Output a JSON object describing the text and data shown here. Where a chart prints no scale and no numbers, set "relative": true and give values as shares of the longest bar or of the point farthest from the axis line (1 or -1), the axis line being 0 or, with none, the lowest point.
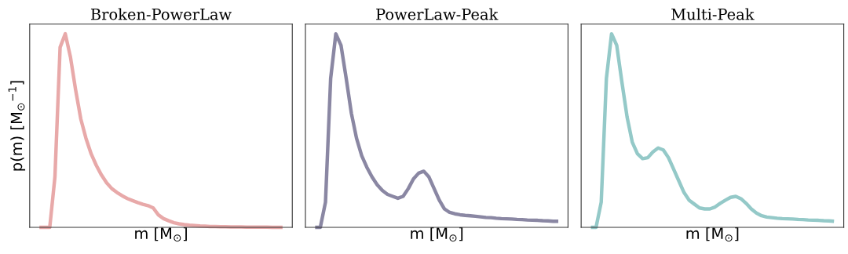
{
  "chart_data": [
    {
      "type": "line",
      "title": "Broken-PowerLaw",
      "xlabel": "m [M$_{⊙}$]",
      "ylabel": "p(m) [M$_{⊙}$$^{−1}$]",
      "relative": true,
      "categories": [
        null,
        null,
        null,
        null,
        null,
        null,
        null,
        null,
        null,
        null,
        null,
        null,
        null,
        null,
        null,
        null,
        null,
        null,
        null,
        null,
        null,
        null,
        null,
        null,
        null,
        null,
        null,
        null,
        null,
        null,
        null,
        null,
        null,
        null,
        null,
        null,
        null,
        null,
        null,
        null,
        null,
        null,
        null,
        null,
        null,
        null,
        null,
        null
      ],
      "series": [
        {
          "color": "#e8a9a9",
          "values": [
            0,
            0,
            0,
            0.26,
            0.93,
            1.0,
            0.88,
            0.71,
            0.56,
            0.46,
            0.38,
            0.32,
            0.27,
            0.23,
            0.2,
            0.18,
            0.163,
            0.149,
            0.138,
            0.128,
            0.119,
            0.112,
            0.1,
            0.064,
            0.045,
            0.034,
            0.024,
            0.018,
            0.014,
            0.011,
            0.009,
            0.007,
            0.006,
            0.004,
            0.004,
            0.003,
            0.003,
            0.002,
            0.002,
            0.002,
            0.001,
            0.001,
            0.001,
            0.001,
            0.001,
            0,
            0,
            0
          ]
        }
      ]
    },
    {
      "type": "line",
      "title": "PowerLaw-Peak",
      "xlabel": "m [M$_{⊙}$]",
      "relative": true,
      "categories": [
        null,
        null,
        null,
        null,
        null,
        null,
        null,
        null,
        null,
        null,
        null,
        null,
        null,
        null,
        null,
        null,
        null,
        null,
        null,
        null,
        null,
        null,
        null,
        null,
        null,
        null,
        null,
        null,
        null,
        null,
        null,
        null,
        null,
        null,
        null,
        null,
        null,
        null,
        null,
        null,
        null,
        null,
        null,
        null,
        null,
        null,
        null,
        null
      ],
      "series": [
        {
          "color": "#8a87a3",
          "values": [
            0,
            0,
            0.13,
            0.77,
            1.0,
            0.94,
            0.77,
            0.59,
            0.46,
            0.37,
            0.31,
            0.26,
            0.22,
            0.19,
            0.17,
            0.16,
            0.15,
            0.16,
            0.2,
            0.25,
            0.28,
            0.29,
            0.26,
            0.2,
            0.14,
            0.095,
            0.077,
            0.07,
            0.065,
            0.062,
            0.06,
            0.057,
            0.054,
            0.051,
            0.05,
            0.047,
            0.045,
            0.044,
            0.043,
            0.041,
            0.04,
            0.038,
            0.037,
            0.036,
            0.034,
            0.033,
            0.031,
            0.031
          ]
        }
      ]
    },
    {
      "type": "line",
      "title": "Multi-Peak",
      "xlabel": "m [M$_{⊙}$]",
      "relative": true,
      "categories": [
        null,
        null,
        null,
        null,
        null,
        null,
        null,
        null,
        null,
        null,
        null,
        null,
        null,
        null,
        null,
        null,
        null,
        null,
        null,
        null,
        null,
        null,
        null,
        null,
        null,
        null,
        null,
        null,
        null,
        null,
        null,
        null,
        null,
        null,
        null,
        null,
        null,
        null,
        null,
        null,
        null,
        null,
        null,
        null,
        null,
        null,
        null,
        null
      ],
      "series": [
        {
          "color": "#94c9c8",
          "values": [
            0,
            0,
            0.13,
            0.77,
            1.0,
            0.94,
            0.75,
            0.57,
            0.44,
            0.38,
            0.355,
            0.36,
            0.39,
            0.41,
            0.4,
            0.36,
            0.3,
            0.24,
            0.18,
            0.14,
            0.12,
            0.1,
            0.095,
            0.095,
            0.105,
            0.124,
            0.14,
            0.155,
            0.16,
            0.148,
            0.124,
            0.095,
            0.074,
            0.06,
            0.053,
            0.05,
            0.047,
            0.045,
            0.044,
            0.043,
            0.041,
            0.04,
            0.038,
            0.037,
            0.036,
            0.034,
            0.033,
            0.031
          ]
        }
      ]
    }
  ]
}
